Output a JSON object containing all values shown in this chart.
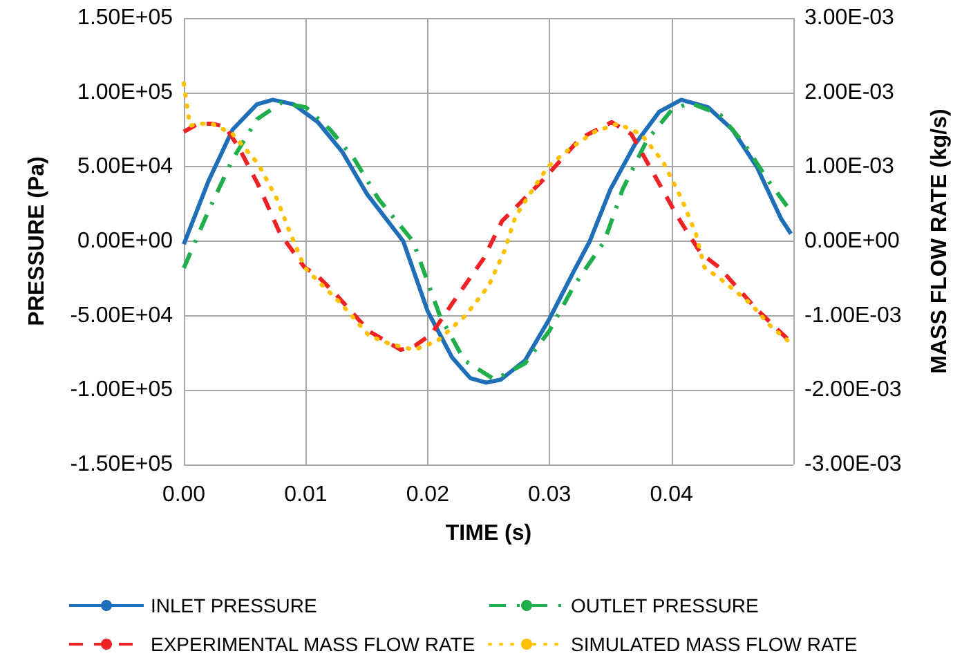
{
  "chart_data": {
    "type": "line",
    "xlabel": "TIME (s)",
    "ylabel": "PRESSURE (Pa)",
    "y2label": "MASS FLOW RATE (kg/s)",
    "xlim": [
      0,
      0.05
    ],
    "xticks": [
      {
        "value": 0,
        "label": "0.00"
      },
      {
        "value": 0.01,
        "label": "0.01"
      },
      {
        "value": 0.02,
        "label": "0.02"
      },
      {
        "value": 0.03,
        "label": "0.03"
      },
      {
        "value": 0.04,
        "label": "0.04"
      },
      {
        "value": 0.05,
        "label": null
      }
    ],
    "ylim": [
      -150000,
      150000
    ],
    "yticks": [
      {
        "value": -150000,
        "label": "-1.50E+05"
      },
      {
        "value": -100000,
        "label": "-1.00E+05"
      },
      {
        "value": -50000,
        "label": "-5.00E+04"
      },
      {
        "value": 0,
        "label": "0.00E+00"
      },
      {
        "value": 50000,
        "label": "5.00E+04"
      },
      {
        "value": 100000,
        "label": "1.00E+05"
      },
      {
        "value": 150000,
        "label": "1.50E+05"
      }
    ],
    "y2lim": [
      -0.003,
      0.003
    ],
    "y2ticks": [
      {
        "value": -0.003,
        "label": "-3.00E-03"
      },
      {
        "value": -0.002,
        "label": "-2.00E-03"
      },
      {
        "value": -0.001,
        "label": "-1.00E-03"
      },
      {
        "value": 0,
        "label": "0.00E+00"
      },
      {
        "value": 0.001,
        "label": "1.00E-03"
      },
      {
        "value": 0.002,
        "label": "2.00E-03"
      },
      {
        "value": 0.003,
        "label": "3.00E-03"
      }
    ],
    "grid": true,
    "legend": "bottom",
    "marker": "none",
    "series": [
      {
        "name": "INLET PRESSURE",
        "color": "#1f6fb8",
        "line_style": "solid",
        "x": [
          0,
          0.002,
          0.004,
          0.006,
          0.0073,
          0.009,
          0.011,
          0.013,
          0.015,
          0.018,
          0.02,
          0.022,
          0.0235,
          0.0248,
          0.026,
          0.028,
          0.03,
          0.032,
          0.0333,
          0.035,
          0.037,
          0.039,
          0.0408,
          0.043,
          0.045,
          0.047,
          0.049,
          0.0498
        ],
        "values": [
          -2000,
          40000,
          75000,
          92000,
          95000,
          92000,
          80000,
          60000,
          32000,
          0,
          -47000,
          -78000,
          -92000,
          -95000,
          -93000,
          -80000,
          -52000,
          -20000,
          0,
          35000,
          65000,
          87000,
          95000,
          90000,
          75000,
          50000,
          15000,
          5000
        ]
      },
      {
        "name": "OUTLET PRESSURE",
        "color": "#1fae4b",
        "line_style": "dashdot",
        "x": [
          0,
          0.002,
          0.004,
          0.006,
          0.008,
          0.01,
          0.012,
          0.014,
          0.016,
          0.0188,
          0.021,
          0.023,
          0.0255,
          0.028,
          0.03,
          0.032,
          0.0345,
          0.036,
          0.038,
          0.04,
          0.0415,
          0.044,
          0.046,
          0.048,
          0.0498
        ],
        "values": [
          -18000,
          20000,
          55000,
          82000,
          93000,
          90000,
          75000,
          55000,
          28000,
          0,
          -50000,
          -80000,
          -93000,
          -82000,
          -60000,
          -30000,
          0,
          35000,
          68000,
          88000,
          93000,
          85000,
          65000,
          40000,
          20000
        ]
      },
      {
        "name": "EXPERIMENTAL MASS FLOW RATE",
        "color": "#ee2224",
        "line_style": "dashed",
        "axis": "y2",
        "x": [
          0,
          0.0012,
          0.0023,
          0.0034,
          0.0045,
          0.0061,
          0.0079,
          0.0099,
          0.011,
          0.0125,
          0.0152,
          0.0178,
          0.019,
          0.0203,
          0.022,
          0.0246,
          0.0261,
          0.0295,
          0.0325,
          0.0351,
          0.0367,
          0.0386,
          0.0405,
          0.0424,
          0.0439,
          0.0469,
          0.0495
        ],
        "values": [
          0.00147,
          0.00158,
          0.00158,
          0.00154,
          0.00126,
          0.00076,
          0.0001,
          -0.00035,
          -0.00047,
          -0.00072,
          -0.00121,
          -0.00146,
          -0.0014,
          -0.00125,
          -0.00084,
          -0.00023,
          0.00027,
          0.00083,
          0.00138,
          0.0016,
          0.00144,
          0.00089,
          0.00033,
          -0.00016,
          -0.00035,
          -0.0009,
          -0.00131
        ]
      },
      {
        "name": "SIMULATED MASS FLOW RATE",
        "color": "#ffc000",
        "line_style": "dotted",
        "axis": "y2",
        "x": [
          0,
          0.0005,
          0.0012,
          0.0023,
          0.004,
          0.0061,
          0.0076,
          0.0087,
          0.0099,
          0.0106,
          0.0129,
          0.0152,
          0.0169,
          0.0189,
          0.0208,
          0.0231,
          0.025,
          0.0263,
          0.0272,
          0.0284,
          0.0299,
          0.0318,
          0.0337,
          0.0356,
          0.0375,
          0.0393,
          0.0408,
          0.042,
          0.0427,
          0.0442,
          0.0465,
          0.048,
          0.0495
        ],
        "values": [
          0.00212,
          0.00155,
          0.00158,
          0.00158,
          0.00144,
          0.00104,
          0.00058,
          0.00012,
          -0.00035,
          -0.00047,
          -0.00084,
          -0.00127,
          -0.00138,
          -0.00146,
          -0.00134,
          -0.001,
          -0.0006,
          -0.00013,
          0.00033,
          0.00064,
          0.00101,
          0.00126,
          0.00147,
          0.00158,
          0.00144,
          0.00107,
          0.00058,
          0.0001,
          -0.00035,
          -0.00053,
          -0.00084,
          -0.00112,
          -0.00133
        ]
      }
    ]
  }
}
